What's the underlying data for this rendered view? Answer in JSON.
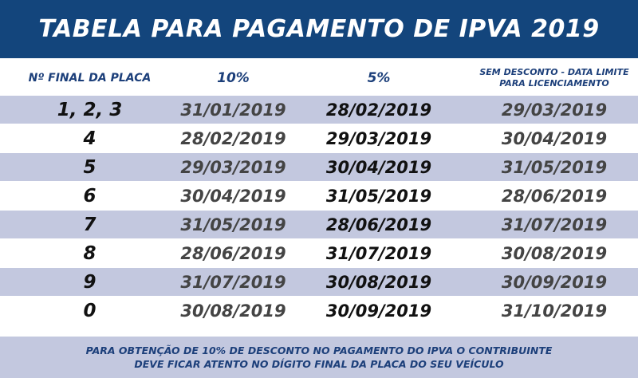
{
  "title": "TABELA PARA PAGAMENTO DE IPVA 2019",
  "header": {
    "col_plate": "Nº FINAL DA PLACA",
    "col_10": "10%",
    "col_5": "5%",
    "col_nodiscount_line1": "SEM DESCONTO - DATA LIMITE",
    "col_nodiscount_line2": "PARA LICENCIAMENTO"
  },
  "rows": [
    {
      "plate": "1, 2, 3",
      "d10": "31/01/2019",
      "d5": "28/02/2019",
      "d0": "29/03/2019"
    },
    {
      "plate": "4",
      "d10": "28/02/2019",
      "d5": "29/03/2019",
      "d0": "30/04/2019"
    },
    {
      "plate": "5",
      "d10": "29/03/2019",
      "d5": "30/04/2019",
      "d0": "31/05/2019"
    },
    {
      "plate": "6",
      "d10": "30/04/2019",
      "d5": "31/05/2019",
      "d0": "28/06/2019"
    },
    {
      "plate": "7",
      "d10": "31/05/2019",
      "d5": "28/06/2019",
      "d0": "31/07/2019"
    },
    {
      "plate": "8",
      "d10": "28/06/2019",
      "d5": "31/07/2019",
      "d0": "30/08/2019"
    },
    {
      "plate": "9",
      "d10": "31/07/2019",
      "d5": "30/08/2019",
      "d0": "30/09/2019"
    },
    {
      "plate": "0",
      "d10": "30/08/2019",
      "d5": "30/09/2019",
      "d0": "31/10/2019"
    }
  ],
  "footer": {
    "line1": "PARA OBTENÇÃO DE 10% DE DESCONTO NO PAGAMENTO DO IPVA O CONTRIBUINTE",
    "line2": "DEVE FICAR ATENTO NO DÍGITO FINAL DA PLACA DO SEU VEÍCULO"
  },
  "colors": {
    "title_bar": "#13457c",
    "band": "#c3c8df",
    "header_text": "#1c3f7a"
  }
}
